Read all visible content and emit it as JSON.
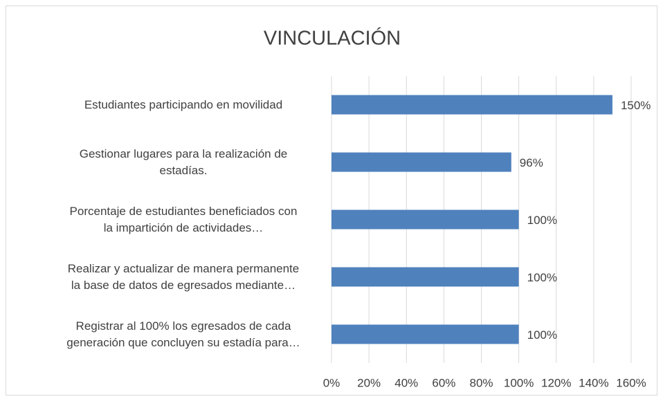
{
  "chart_data": {
    "type": "bar",
    "orientation": "horizontal",
    "title": "VINCULACIÓN",
    "categories": [
      "Estudiantes participando en movilidad",
      "Gestionar lugares para la realización de\nestadías.",
      "Porcentaje de estudiantes beneficiados con\nla impartición de actividades…",
      "Realizar y actualizar de manera permanente\nla base de datos de egresados mediante…",
      "Registrar al 100% los egresados de cada\ngeneración que concluyen su estadía para…"
    ],
    "values": [
      150,
      96,
      100,
      100,
      100
    ],
    "value_labels": [
      "150%",
      "96%",
      "100%",
      "100%",
      "100%"
    ],
    "color": "#4f81bd",
    "xlim": [
      0,
      160
    ],
    "xticks": [
      {
        "value": 0,
        "label": "0%"
      },
      {
        "value": 20,
        "label": "20%"
      },
      {
        "value": 40,
        "label": "40%"
      },
      {
        "value": 60,
        "label": "60%"
      },
      {
        "value": 80,
        "label": "80%"
      },
      {
        "value": 100,
        "label": "100%"
      },
      {
        "value": 120,
        "label": "120%"
      },
      {
        "value": 140,
        "label": "140%"
      },
      {
        "value": 160,
        "label": "160%"
      }
    ],
    "grid": true
  }
}
